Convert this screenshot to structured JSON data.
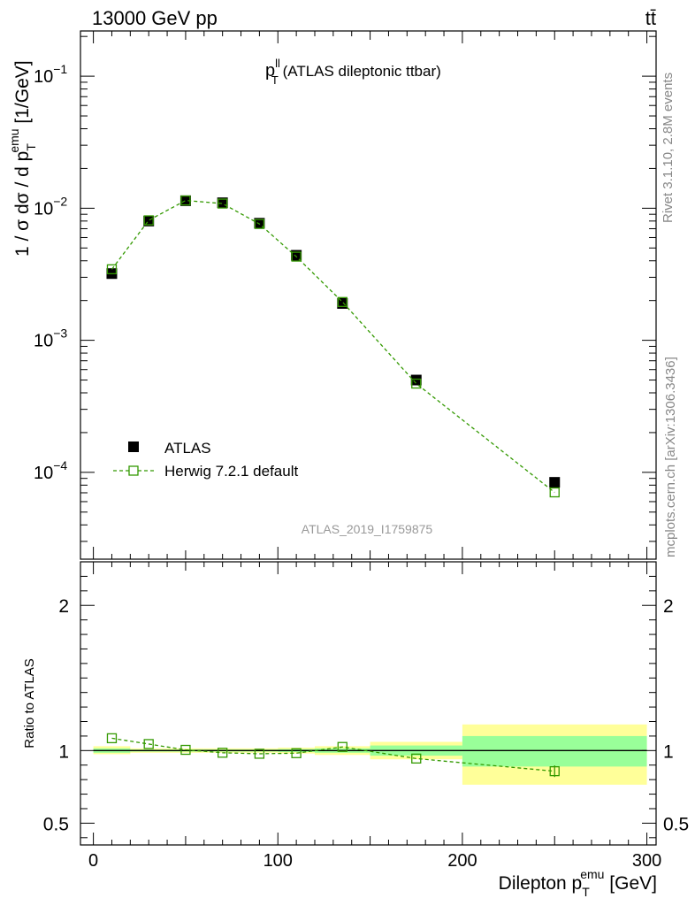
{
  "header": {
    "energy_label": "13000 GeV pp",
    "process_label": "tt̄"
  },
  "side_labels": {
    "rivet": "Rivet 3.1.10,  2.8M events",
    "mcplots": "mcplots.cern.ch [arXiv:1306.3436]"
  },
  "plot_title": {
    "main": "p",
    "sup": "ll",
    "sub": "T",
    "rest": " (ATLAS dileptonic ttbar)"
  },
  "analysis_id": "ATLAS_2019_I1759875",
  "colors": {
    "mc": "#339900",
    "band_stat": "#99ff99",
    "band_syst": "#ffff99",
    "data": "#000000"
  },
  "chart_data": [
    {
      "type": "scatter",
      "name": "main",
      "x_edges": [
        0,
        20,
        40,
        60,
        80,
        100,
        120,
        150,
        200,
        300
      ],
      "x_centers": [
        10,
        30,
        50,
        70,
        90,
        110,
        135,
        175,
        250
      ],
      "series": [
        {
          "name": "ATLAS",
          "marker": "filled-square",
          "values": [
            0.0032,
            0.008,
            0.0114,
            0.011,
            0.0077,
            0.0044,
            0.0019,
            0.0005,
            8.4e-05
          ]
        },
        {
          "name": "Herwig 7.2.1 default",
          "marker": "open-square",
          "line": "dashed",
          "values": [
            0.00345,
            0.0081,
            0.01145,
            0.01085,
            0.0076,
            0.0043,
            0.00195,
            0.00047,
            7.05e-05
          ]
        }
      ],
      "yscale": "log",
      "ylim": [
        2.2e-05,
        0.22
      ],
      "xlim": [
        -7,
        305
      ],
      "ylabel": {
        "pre": "1 / σ  dσ / d p",
        "sub": "T",
        "sup": "emu",
        "post": " [1/GeV]"
      },
      "ytick_labels": [
        {
          "mant": "10",
          "exp": "−1",
          "value": 0.1
        },
        {
          "mant": "10",
          "exp": "−2",
          "value": 0.01
        },
        {
          "mant": "10",
          "exp": "−3",
          "value": 0.001
        },
        {
          "mant": "10",
          "exp": "−4",
          "value": 0.0001
        }
      ],
      "legend_position": "left-middle"
    },
    {
      "type": "scatter",
      "name": "ratio",
      "ylabel": "Ratio to ATLAS",
      "ylim": [
        0.35,
        2.3
      ],
      "xlim": [
        -7,
        305
      ],
      "yticks": [
        0.5,
        1,
        2
      ],
      "ytick_labels": [
        "0.5",
        "1",
        "2"
      ],
      "xticks": [
        0,
        100,
        200,
        300
      ],
      "xtick_labels": [
        "0",
        "100",
        "200",
        "300"
      ],
      "xlabel": {
        "pre": "Dilepton p",
        "sub": "T",
        "sup": "emu",
        "post": " [GeV]"
      },
      "band_syst": [
        [
          0.975,
          1.03
        ],
        [
          0.985,
          1.015
        ],
        [
          0.985,
          1.015
        ],
        [
          0.985,
          1.015
        ],
        [
          0.985,
          1.015
        ],
        [
          0.98,
          1.02
        ],
        [
          0.97,
          1.03
        ],
        [
          0.94,
          1.06
        ],
        [
          0.765,
          1.18
        ]
      ],
      "band_stat": [
        [
          0.985,
          1.015
        ],
        [
          0.993,
          1.007
        ],
        [
          0.993,
          1.007
        ],
        [
          0.993,
          1.007
        ],
        [
          0.993,
          1.007
        ],
        [
          0.99,
          1.01
        ],
        [
          0.985,
          1.015
        ],
        [
          0.965,
          1.035
        ],
        [
          0.89,
          1.1
        ]
      ],
      "series": [
        {
          "name": "Herwig 7.2.1 default",
          "values": [
            1.085,
            1.045,
            1.005,
            0.985,
            0.978,
            0.982,
            1.025,
            0.945,
            0.858
          ],
          "errors": [
            0,
            0,
            0,
            0,
            0,
            0,
            0,
            0,
            0.04
          ]
        }
      ]
    }
  ]
}
